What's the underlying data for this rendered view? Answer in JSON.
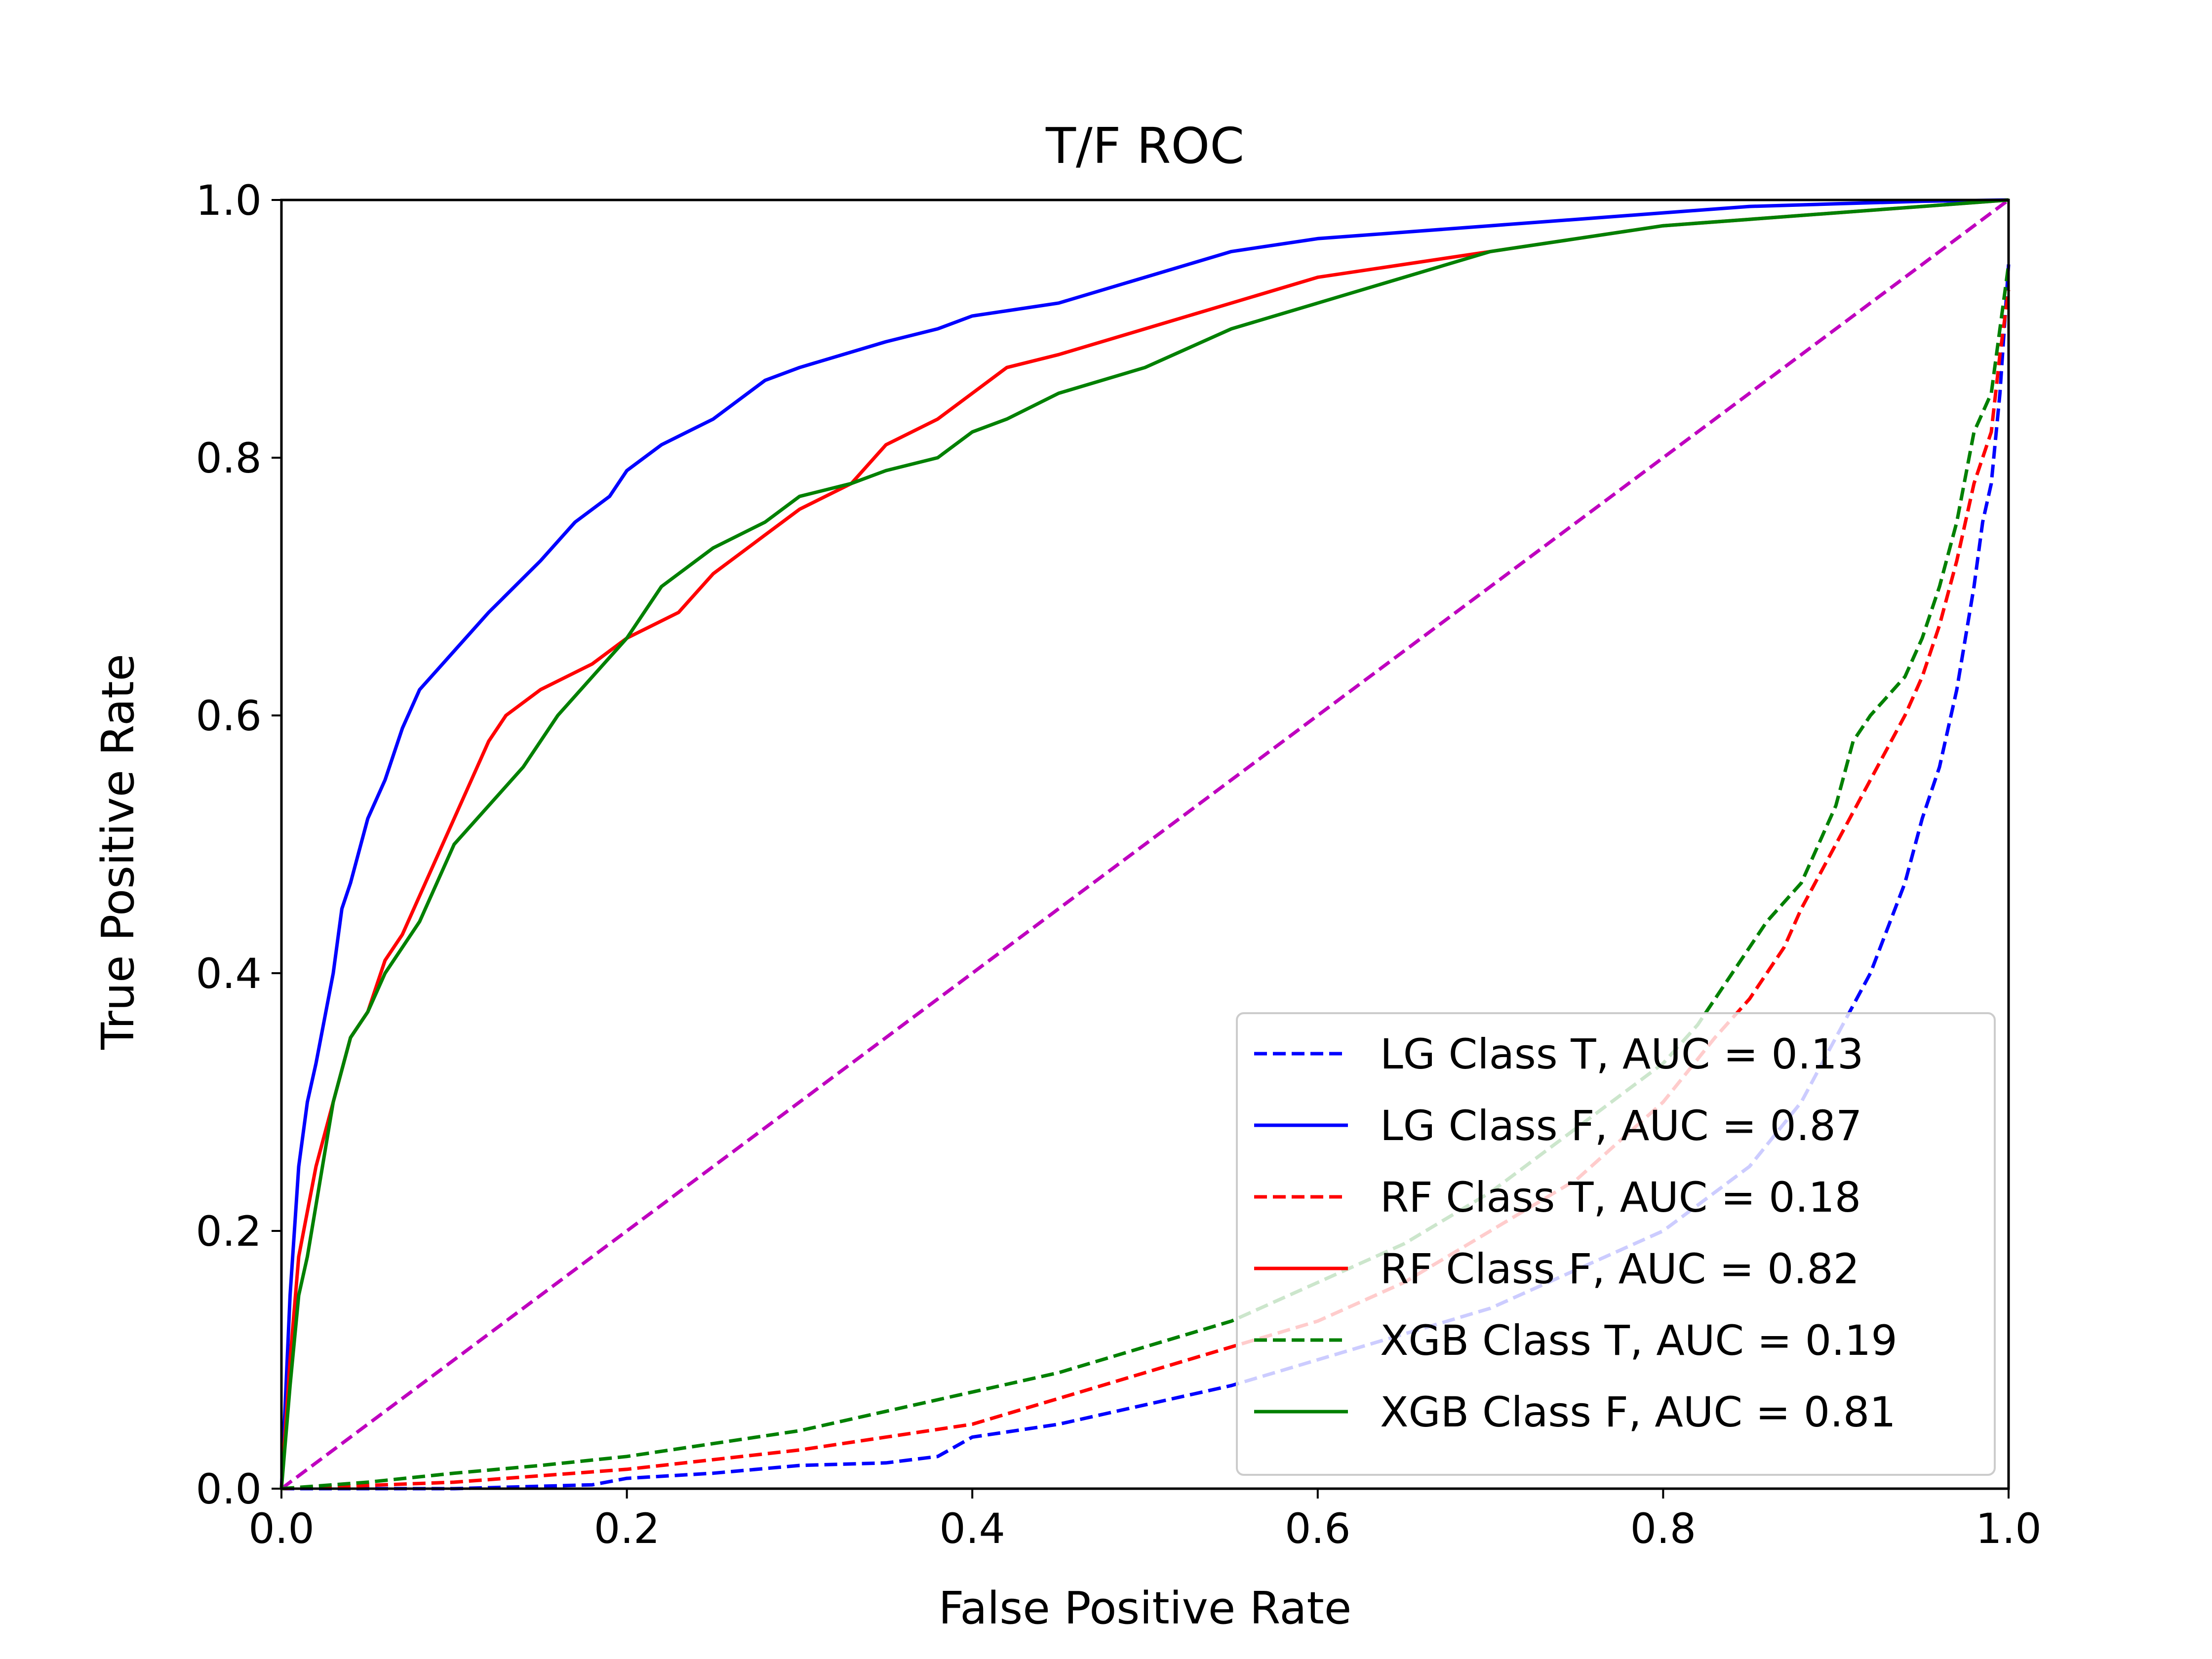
{
  "chart_data": {
    "type": "line",
    "title": "T/F ROC",
    "xlabel": "False Positive Rate",
    "ylabel": "True Positive Rate",
    "xlim": [
      0.0,
      1.0
    ],
    "ylim": [
      0.0,
      1.0
    ],
    "xticks": [
      "0.0",
      "0.2",
      "0.4",
      "0.6",
      "0.8",
      "1.0"
    ],
    "yticks": [
      "0.0",
      "0.2",
      "0.4",
      "0.6",
      "0.8",
      "1.0"
    ],
    "grid": false,
    "legend_position": "lower-right",
    "diagonal": {
      "color": "#bf00bf",
      "style": "dashed",
      "x": [
        0,
        1
      ],
      "y": [
        0,
        1
      ]
    },
    "series": [
      {
        "name": "LG Class T, AUC = 0.13",
        "color": "#0000ff",
        "style": "dashed",
        "x": [
          0,
          0.1,
          0.18,
          0.2,
          0.25,
          0.3,
          0.35,
          0.38,
          0.4,
          0.45,
          0.5,
          0.55,
          0.6,
          0.65,
          0.7,
          0.75,
          0.8,
          0.85,
          0.88,
          0.9,
          0.92,
          0.94,
          0.95,
          0.96,
          0.97,
          0.98,
          0.985,
          0.99,
          0.995,
          1.0
        ],
        "y": [
          0,
          0,
          0.003,
          0.008,
          0.012,
          0.018,
          0.02,
          0.025,
          0.04,
          0.05,
          0.065,
          0.08,
          0.1,
          0.12,
          0.14,
          0.17,
          0.2,
          0.25,
          0.3,
          0.35,
          0.4,
          0.47,
          0.52,
          0.56,
          0.62,
          0.7,
          0.75,
          0.78,
          0.85,
          0.95
        ]
      },
      {
        "name": "LG Class F, AUC = 0.87",
        "color": "#0000ff",
        "style": "solid",
        "x": [
          0,
          0.005,
          0.01,
          0.015,
          0.02,
          0.03,
          0.035,
          0.04,
          0.05,
          0.06,
          0.07,
          0.08,
          0.1,
          0.12,
          0.15,
          0.17,
          0.19,
          0.2,
          0.22,
          0.25,
          0.28,
          0.3,
          0.35,
          0.38,
          0.4,
          0.45,
          0.5,
          0.55,
          0.6,
          0.65,
          0.7,
          0.75,
          0.8,
          0.85,
          0.9,
          0.95,
          1.0
        ],
        "y": [
          0,
          0.15,
          0.25,
          0.3,
          0.33,
          0.4,
          0.45,
          0.47,
          0.52,
          0.55,
          0.59,
          0.62,
          0.65,
          0.68,
          0.72,
          0.75,
          0.77,
          0.79,
          0.81,
          0.83,
          0.86,
          0.87,
          0.89,
          0.9,
          0.91,
          0.92,
          0.94,
          0.96,
          0.97,
          0.975,
          0.98,
          0.985,
          0.99,
          0.995,
          0.997,
          0.999,
          1.0
        ]
      },
      {
        "name": "RF Class T, AUC = 0.18",
        "color": "#ff0000",
        "style": "dashed",
        "x": [
          0,
          0.1,
          0.2,
          0.3,
          0.35,
          0.4,
          0.45,
          0.5,
          0.55,
          0.6,
          0.65,
          0.7,
          0.75,
          0.8,
          0.83,
          0.85,
          0.87,
          0.88,
          0.9,
          0.92,
          0.94,
          0.95,
          0.96,
          0.97,
          0.98,
          0.99,
          0.995,
          1.0
        ],
        "y": [
          0,
          0.005,
          0.015,
          0.03,
          0.04,
          0.05,
          0.07,
          0.09,
          0.11,
          0.13,
          0.16,
          0.2,
          0.24,
          0.3,
          0.35,
          0.38,
          0.42,
          0.45,
          0.5,
          0.55,
          0.6,
          0.63,
          0.67,
          0.72,
          0.78,
          0.82,
          0.88,
          0.93
        ]
      },
      {
        "name": "RF Class F, AUC = 0.82",
        "color": "#ff0000",
        "style": "solid",
        "x": [
          0,
          0.005,
          0.01,
          0.02,
          0.03,
          0.04,
          0.05,
          0.06,
          0.07,
          0.08,
          0.09,
          0.1,
          0.11,
          0.12,
          0.13,
          0.15,
          0.18,
          0.2,
          0.23,
          0.25,
          0.28,
          0.3,
          0.33,
          0.35,
          0.38,
          0.4,
          0.42,
          0.45,
          0.5,
          0.55,
          0.6,
          0.65,
          0.7,
          0.75,
          0.8,
          0.85,
          0.9,
          0.95,
          1.0
        ],
        "y": [
          0,
          0.1,
          0.18,
          0.25,
          0.3,
          0.35,
          0.37,
          0.41,
          0.43,
          0.46,
          0.49,
          0.52,
          0.55,
          0.58,
          0.6,
          0.62,
          0.64,
          0.66,
          0.68,
          0.71,
          0.74,
          0.76,
          0.78,
          0.81,
          0.83,
          0.85,
          0.87,
          0.88,
          0.9,
          0.92,
          0.94,
          0.95,
          0.96,
          0.97,
          0.98,
          0.985,
          0.99,
          0.995,
          1.0
        ]
      },
      {
        "name": "XGB Class T, AUC = 0.19",
        "color": "#008000",
        "style": "dashed",
        "x": [
          0,
          0.05,
          0.1,
          0.15,
          0.2,
          0.25,
          0.3,
          0.35,
          0.4,
          0.45,
          0.5,
          0.55,
          0.6,
          0.65,
          0.7,
          0.75,
          0.8,
          0.82,
          0.84,
          0.86,
          0.88,
          0.9,
          0.91,
          0.92,
          0.94,
          0.95,
          0.96,
          0.97,
          0.98,
          0.99,
          1.0
        ],
        "y": [
          0,
          0.005,
          0.012,
          0.018,
          0.025,
          0.035,
          0.045,
          0.06,
          0.075,
          0.09,
          0.11,
          0.13,
          0.16,
          0.19,
          0.23,
          0.28,
          0.33,
          0.36,
          0.4,
          0.44,
          0.47,
          0.53,
          0.58,
          0.6,
          0.63,
          0.66,
          0.7,
          0.75,
          0.82,
          0.85,
          0.95
        ]
      },
      {
        "name": "XGB Class F, AUC = 0.81",
        "color": "#008000",
        "style": "solid",
        "x": [
          0,
          0.005,
          0.01,
          0.015,
          0.02,
          0.03,
          0.04,
          0.05,
          0.06,
          0.07,
          0.08,
          0.09,
          0.1,
          0.12,
          0.14,
          0.16,
          0.18,
          0.2,
          0.22,
          0.25,
          0.28,
          0.3,
          0.33,
          0.35,
          0.38,
          0.4,
          0.42,
          0.45,
          0.5,
          0.55,
          0.6,
          0.65,
          0.7,
          0.75,
          0.8,
          0.85,
          0.9,
          0.95,
          1.0
        ],
        "y": [
          0,
          0.08,
          0.15,
          0.18,
          0.22,
          0.3,
          0.35,
          0.37,
          0.4,
          0.42,
          0.44,
          0.47,
          0.5,
          0.53,
          0.56,
          0.6,
          0.63,
          0.66,
          0.7,
          0.73,
          0.75,
          0.77,
          0.78,
          0.79,
          0.8,
          0.82,
          0.83,
          0.85,
          0.87,
          0.9,
          0.92,
          0.94,
          0.96,
          0.97,
          0.98,
          0.985,
          0.99,
          0.995,
          1.0
        ]
      }
    ]
  }
}
